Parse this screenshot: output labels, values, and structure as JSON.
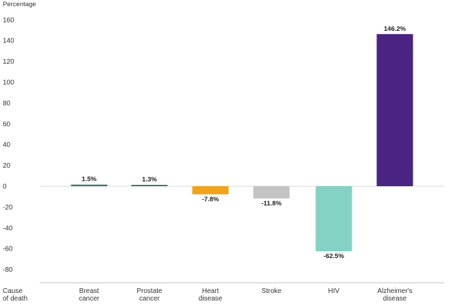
{
  "chart_data": {
    "type": "bar",
    "ylabel": "Percentage",
    "xlabel": [
      "Cause",
      "of death"
    ],
    "ylim": [
      -90,
      160
    ],
    "yticks": [
      160,
      140,
      120,
      100,
      80,
      60,
      40,
      20,
      0,
      -20,
      -40,
      -60,
      -80
    ],
    "grid": false,
    "categories": [
      [
        "Breast",
        "cancer"
      ],
      [
        "Prostate",
        "cancer"
      ],
      [
        "Heart",
        "disease"
      ],
      [
        "Stroke"
      ],
      [
        "HIV"
      ],
      [
        "Alzheimer's",
        "disease"
      ]
    ],
    "values": [
      1.5,
      1.3,
      -7.8,
      -11.8,
      -62.5,
      146.2
    ],
    "data_labels": [
      "1.5%",
      "1.3%",
      "-7.8%",
      "-11.8%",
      "-62.5%",
      "146.2%"
    ],
    "colors": [
      "#2e7d6e",
      "#2e7d6e",
      "#f2a31c",
      "#c4c4c4",
      "#83d2c4",
      "#4b2383"
    ]
  }
}
